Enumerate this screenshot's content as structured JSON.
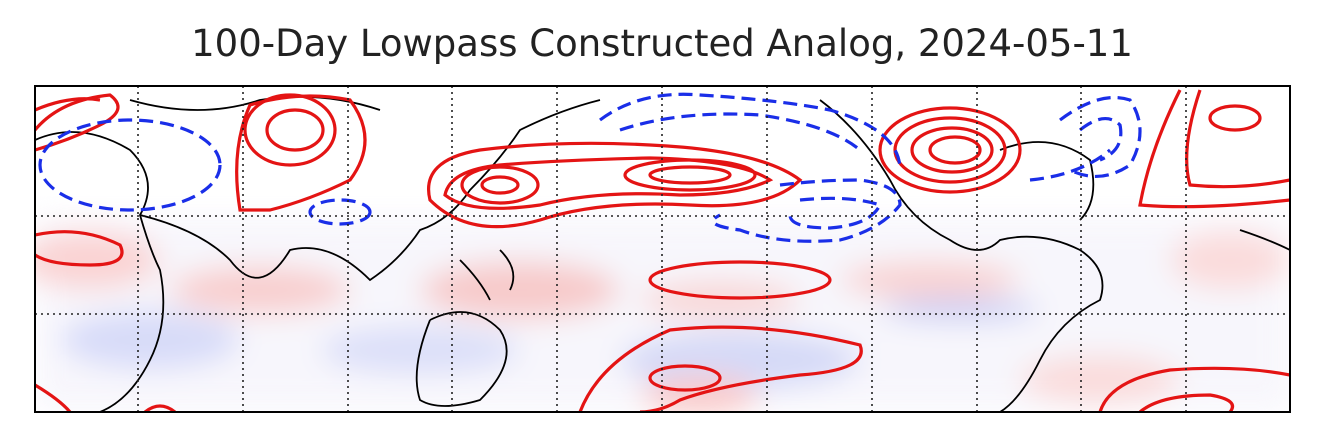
{
  "title": "100-Day Lowpass Constructed Analog, 2024-05-11"
}
